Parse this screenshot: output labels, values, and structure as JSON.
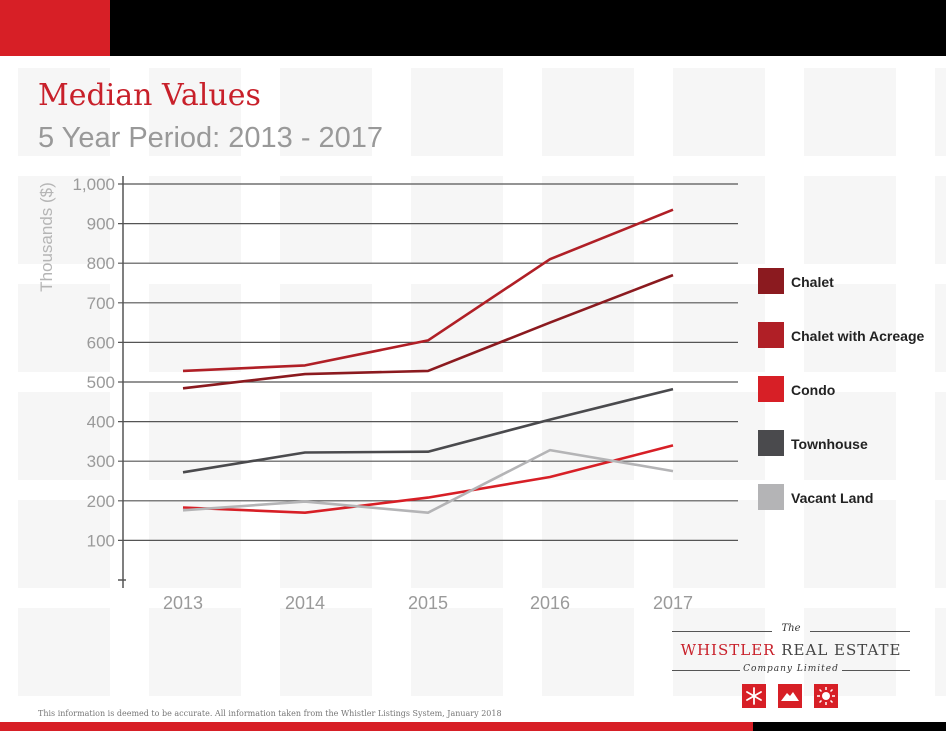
{
  "header": {
    "title": "Median Values",
    "subtitle": "5 Year Period: 2013 - 2017"
  },
  "chart_data": {
    "type": "line",
    "ylabel": "Thousands ($)",
    "xlabel": "",
    "x": [
      "2013",
      "2014",
      "2015",
      "2016",
      "2017"
    ],
    "ylim": [
      0,
      1000
    ],
    "yticks": [
      100,
      200,
      300,
      400,
      500,
      600,
      700,
      800,
      900,
      1000
    ],
    "ytick_labels": [
      "100",
      "200",
      "300",
      "400",
      "500",
      "600",
      "700",
      "800",
      "900",
      "1,000"
    ],
    "grid": true,
    "legend_position": "right",
    "series": [
      {
        "name": "Chalet",
        "color": "#8b1a1f",
        "values": [
          484,
          520,
          528,
          650,
          770
        ]
      },
      {
        "name": "Chalet with Acreage",
        "color": "#b01f26",
        "values": [
          528,
          542,
          605,
          810,
          935
        ]
      },
      {
        "name": "Condo",
        "color": "#d71f26",
        "values": [
          183,
          170,
          208,
          260,
          340
        ]
      },
      {
        "name": "Townhouse",
        "color": "#4a4a4d",
        "values": [
          272,
          322,
          324,
          405,
          482
        ]
      },
      {
        "name": "Vacant Land",
        "color": "#b4b4b6",
        "values": [
          176,
          198,
          170,
          328,
          275
        ]
      }
    ]
  },
  "logo": {
    "the": "The",
    "name_part1": "WHISTLER",
    "name_part2": " REAL ESTATE",
    "sub": "Company Limited",
    "icons": [
      "snowflake-icon",
      "mountain-icon",
      "sun-icon"
    ]
  },
  "footer": {
    "note": "This information is deemed to be accurate. All information taken from the Whistler Listings System, January 2018"
  },
  "colors": {
    "brand_red": "#d71f26",
    "title_red": "#c8202a",
    "black": "#000000"
  }
}
